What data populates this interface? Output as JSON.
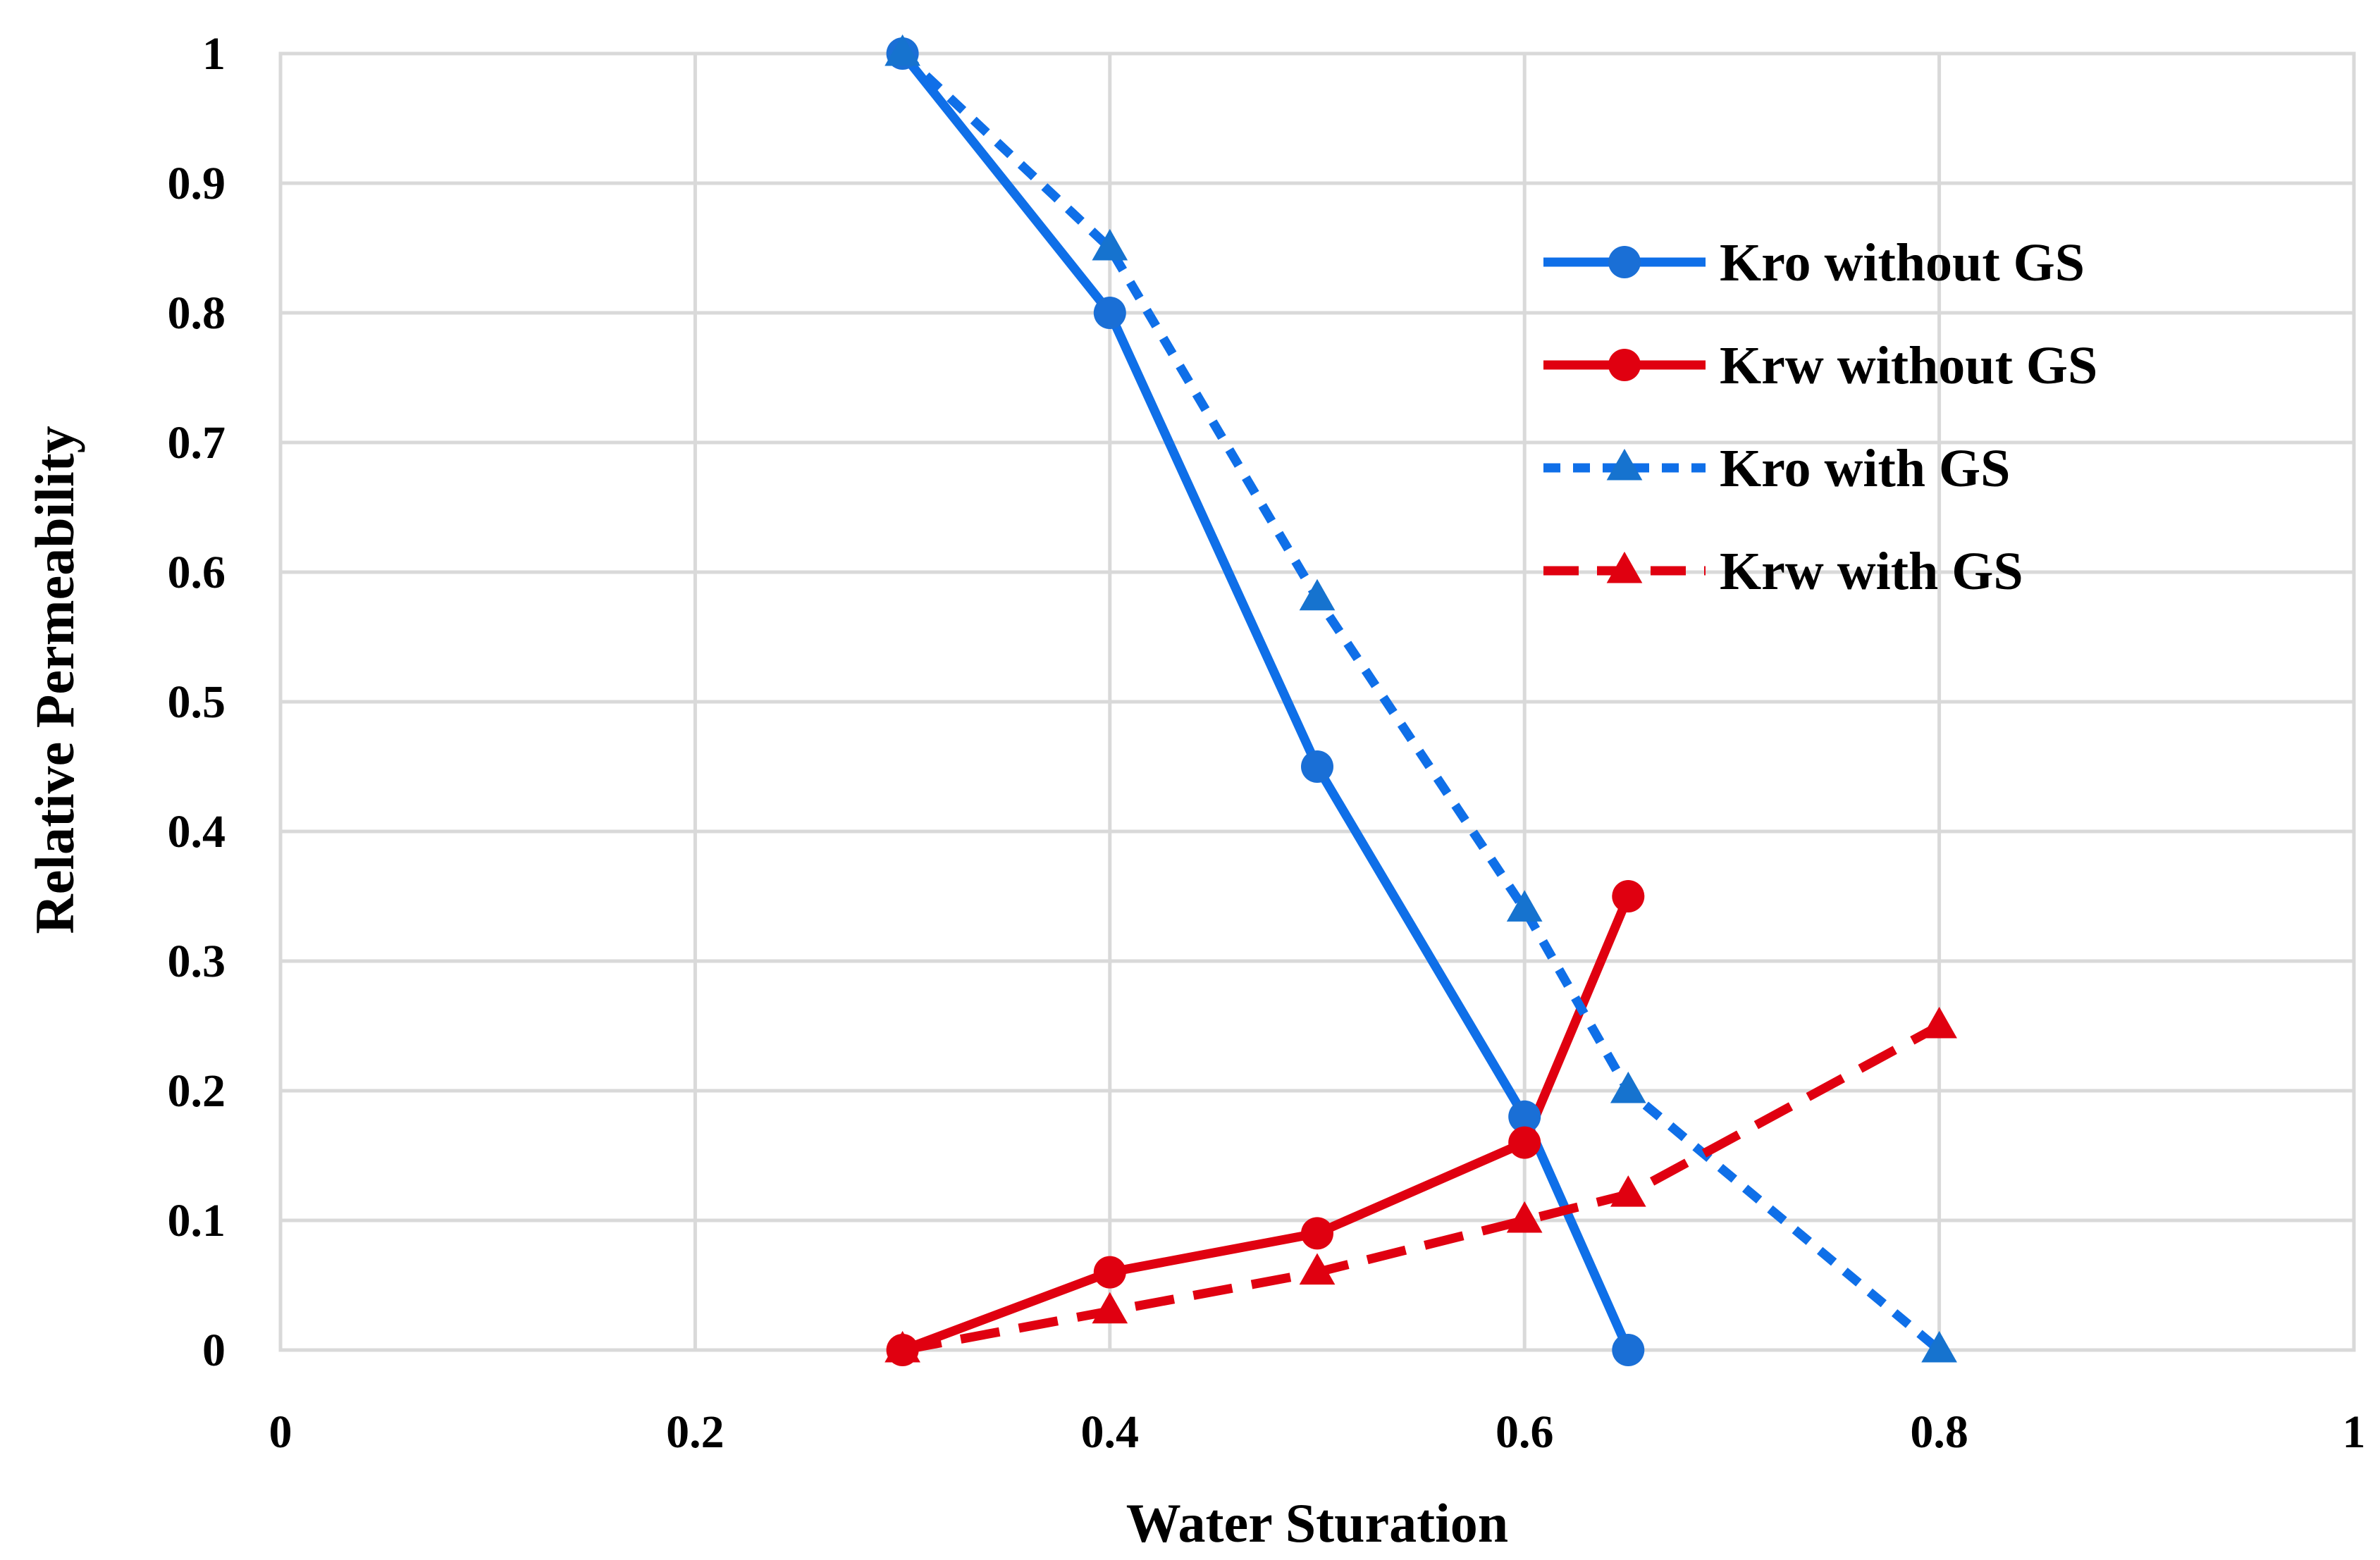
{
  "chart_data": {
    "type": "line",
    "title": "",
    "xlabel": "Water Sturation",
    "ylabel": "Relative Permeability",
    "xlim": [
      0,
      1
    ],
    "ylim": [
      0,
      1
    ],
    "grid": true,
    "legend_position": "top-right",
    "x_ticks": [
      "0",
      "0.2",
      "0.4",
      "0.6",
      "0.8",
      "1"
    ],
    "y_ticks": [
      "0",
      "0.1",
      "0.2",
      "0.3",
      "0.4",
      "0.5",
      "0.6",
      "0.7",
      "0.8",
      "0.9",
      "1"
    ],
    "series": [
      {
        "name": "Kro without GS",
        "color": "#0f6fe8",
        "marker": "circle",
        "dash": "solid",
        "x": [
          0.3,
          0.4,
          0.5,
          0.6,
          0.65
        ],
        "y": [
          1.0,
          0.8,
          0.45,
          0.18,
          0.0
        ]
      },
      {
        "name": "Krw without GS",
        "color": "#e00010",
        "marker": "circle",
        "dash": "solid",
        "x": [
          0.3,
          0.4,
          0.5,
          0.6,
          0.65
        ],
        "y": [
          0.0,
          0.06,
          0.09,
          0.16,
          0.35
        ]
      },
      {
        "name": "Kro with GS",
        "color": "#0f6fe8",
        "marker": "triangle",
        "dash": "short",
        "x": [
          0.3,
          0.4,
          0.5,
          0.6,
          0.65,
          0.8
        ],
        "y": [
          1.0,
          0.85,
          0.58,
          0.34,
          0.2,
          0.0
        ]
      },
      {
        "name": "Krw with GS",
        "color": "#e00010",
        "marker": "triangle",
        "dash": "long",
        "x": [
          0.3,
          0.4,
          0.5,
          0.6,
          0.65,
          0.8
        ],
        "y": [
          0.0,
          0.03,
          0.06,
          0.1,
          0.12,
          0.25
        ]
      }
    ]
  }
}
